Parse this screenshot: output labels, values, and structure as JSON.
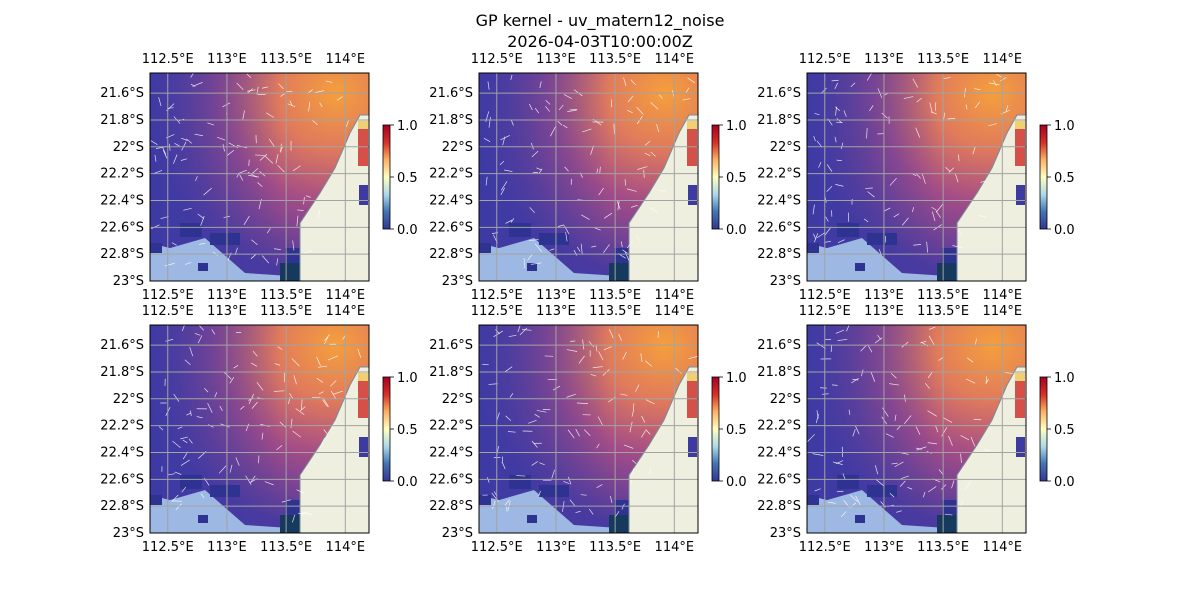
{
  "figure": {
    "title": "GP kernel - uv_matern12_noise",
    "subtitle": "2026-04-03T10:00:00Z"
  },
  "colors": {
    "ocean": "#9cb8e3",
    "land": "#efefdf",
    "grid": "#a3a3a3",
    "vector": "#ffffff",
    "cmap": [
      "#313695",
      "#4575b4",
      "#abd9e9",
      "#ffffbf",
      "#fdae61",
      "#d73027",
      "#a50026"
    ],
    "field_low": "#3c3aa5",
    "field_mid": "#c55e79",
    "field_high": "#f0a040"
  },
  "chart_data": [
    {
      "panel": 1,
      "type": "heatmap",
      "field": "uv_matern12_noise",
      "x_ticks": [
        "112.5°E",
        "113°E",
        "113.5°E",
        "114°E"
      ],
      "y_ticks": [
        "21.6°S",
        "21.8°S",
        "22°S",
        "22.2°S",
        "22.4°S",
        "22.6°S",
        "22.8°S",
        "23°S"
      ],
      "lon_range": [
        112.35,
        114.2
      ],
      "lat_range": [
        -23.0,
        -21.45
      ],
      "colorbar_ticks": [
        "0.0",
        "0.5",
        "1.0"
      ],
      "vmin": 0.0,
      "vmax": 1.0,
      "grid": true
    },
    {
      "panel": 2,
      "type": "heatmap",
      "field": "uv_matern12_noise",
      "x_ticks": [
        "112.5°E",
        "113°E",
        "113.5°E",
        "114°E"
      ],
      "y_ticks": [
        "21.6°S",
        "21.8°S",
        "22°S",
        "22.2°S",
        "22.4°S",
        "22.6°S",
        "22.8°S",
        "23°S"
      ],
      "lon_range": [
        112.35,
        114.2
      ],
      "lat_range": [
        -23.0,
        -21.45
      ],
      "colorbar_ticks": [
        "0.0",
        "0.5",
        "1.0"
      ],
      "vmin": 0.0,
      "vmax": 1.0,
      "grid": true
    },
    {
      "panel": 3,
      "type": "heatmap",
      "field": "uv_matern12_noise",
      "x_ticks": [
        "112.5°E",
        "113°E",
        "113.5°E",
        "114°E"
      ],
      "y_ticks": [
        "21.6°S",
        "21.8°S",
        "22°S",
        "22.2°S",
        "22.4°S",
        "22.6°S",
        "22.8°S",
        "23°S"
      ],
      "lon_range": [
        112.35,
        114.2
      ],
      "lat_range": [
        -23.0,
        -21.45
      ],
      "colorbar_ticks": [
        "0.0",
        "0.5",
        "1.0"
      ],
      "vmin": 0.0,
      "vmax": 1.0,
      "grid": true
    },
    {
      "panel": 4,
      "type": "heatmap",
      "field": "uv_matern12_noise",
      "x_ticks": [
        "112.5°E",
        "113°E",
        "113.5°E",
        "114°E"
      ],
      "y_ticks": [
        "21.6°S",
        "21.8°S",
        "22°S",
        "22.2°S",
        "22.4°S",
        "22.6°S",
        "22.8°S",
        "23°S"
      ],
      "lon_range": [
        112.35,
        114.2
      ],
      "lat_range": [
        -23.0,
        -21.45
      ],
      "colorbar_ticks": [
        "0.0",
        "0.5",
        "1.0"
      ],
      "vmin": 0.0,
      "vmax": 1.0,
      "grid": true
    },
    {
      "panel": 5,
      "type": "heatmap",
      "field": "uv_matern12_noise",
      "x_ticks": [
        "112.5°E",
        "113°E",
        "113.5°E",
        "114°E"
      ],
      "y_ticks": [
        "21.6°S",
        "21.8°S",
        "22°S",
        "22.2°S",
        "22.4°S",
        "22.6°S",
        "22.8°S",
        "23°S"
      ],
      "lon_range": [
        112.35,
        114.2
      ],
      "lat_range": [
        -23.0,
        -21.45
      ],
      "colorbar_ticks": [
        "0.0",
        "0.5",
        "1.0"
      ],
      "vmin": 0.0,
      "vmax": 1.0,
      "grid": true
    },
    {
      "panel": 6,
      "type": "heatmap",
      "field": "uv_matern12_noise",
      "x_ticks": [
        "112.5°E",
        "113°E",
        "113.5°E",
        "114°E"
      ],
      "y_ticks": [
        "21.6°S",
        "21.8°S",
        "22°S",
        "22.2°S",
        "22.4°S",
        "22.6°S",
        "22.8°S",
        "23°S"
      ],
      "lon_range": [
        112.35,
        114.2
      ],
      "lat_range": [
        -23.0,
        -21.45
      ],
      "colorbar_ticks": [
        "0.0",
        "0.5",
        "1.0"
      ],
      "vmin": 0.0,
      "vmax": 1.0,
      "grid": true
    }
  ]
}
